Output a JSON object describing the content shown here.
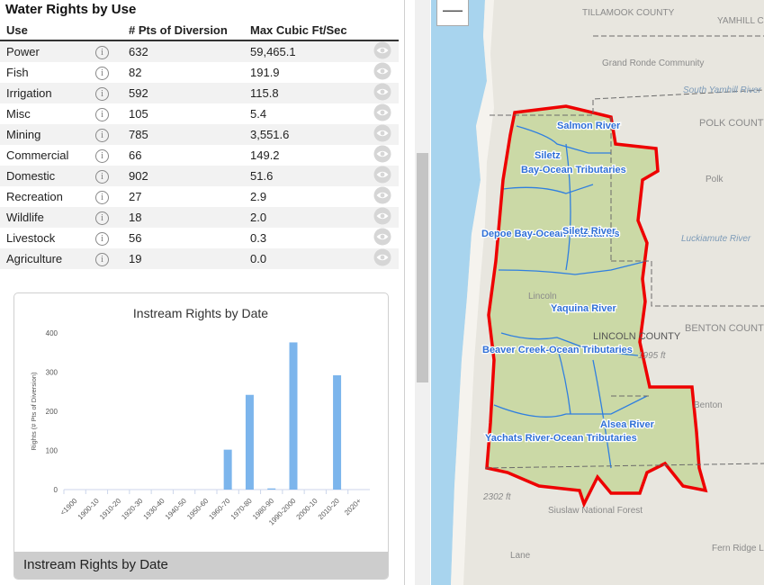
{
  "panel": {
    "title": "Water Rights by Use",
    "columns": [
      "Use",
      "# Pts of Diversion",
      "Max Cubic Ft/Sec"
    ],
    "rows": [
      {
        "use": "Power",
        "points": "632",
        "max_cfs": "59,465.1"
      },
      {
        "use": "Fish",
        "points": "82",
        "max_cfs": "191.9"
      },
      {
        "use": "Irrigation",
        "points": "592",
        "max_cfs": "115.8"
      },
      {
        "use": "Misc",
        "points": "105",
        "max_cfs": "5.4"
      },
      {
        "use": "Mining",
        "points": "785",
        "max_cfs": "3,551.6"
      },
      {
        "use": "Commercial",
        "points": "66",
        "max_cfs": "149.2"
      },
      {
        "use": "Domestic",
        "points": "902",
        "max_cfs": "51.6"
      },
      {
        "use": "Recreation",
        "points": "27",
        "max_cfs": "2.9"
      },
      {
        "use": "Wildlife",
        "points": "18",
        "max_cfs": "2.0"
      },
      {
        "use": "Livestock",
        "points": "56",
        "max_cfs": "0.3"
      },
      {
        "use": "Agriculture",
        "points": "19",
        "max_cfs": "0.0"
      }
    ],
    "info_icon": "info-circle-icon",
    "eye_icon": "eye-icon"
  },
  "chart_card": {
    "footer_label": "Instream Rights by Date"
  },
  "chart_data": {
    "type": "bar",
    "title": "Instream Rights by Date",
    "ylabel": "Rights (# Pts of Diversion)",
    "xlabel": "",
    "ylim": [
      0,
      400
    ],
    "yticks": [
      0,
      100,
      200,
      300,
      400
    ],
    "categories": [
      "<1900",
      "1900-10",
      "1910-20",
      "1920-30",
      "1930-40",
      "1940-50",
      "1950-60",
      "1960-70",
      "1970-80",
      "1980-90",
      "1990-2000",
      "2000-10",
      "2010-20",
      "2020+"
    ],
    "values": [
      0,
      0,
      0,
      0,
      0,
      0,
      0,
      102,
      242,
      3,
      376,
      0,
      292,
      0
    ],
    "bar_color": "#7cb5ec",
    "grid": false
  },
  "map": {
    "zoom_out_label": "—",
    "county_labels": [
      "TILLAMOOK COUNTY",
      "POLK COUNTY",
      "BENTON COUNTY",
      "LINCOLN COUNTY",
      "YAMHILL COUNTY"
    ],
    "place_labels": [
      "Grand Ronde Community",
      "Polk",
      "Lincoln",
      "Benton",
      "Siuslaw National Forest",
      "Fern Ridge Lake",
      "Lane",
      "South Yamhill River",
      "Luckiamute River"
    ],
    "basins": [
      "Salmon River",
      "Siletz",
      "Bay-Ocean Tributaries",
      "Depoe Bay-Ocean Tributaries",
      "Siletz River",
      "Yaquina River",
      "Beaver Creek-Ocean Tributaries",
      "Yachats River-Ocean Tributaries",
      "Alsea River"
    ],
    "elevations": [
      "2302 ft",
      "1995 ft"
    ],
    "colors": {
      "water": "#a8d4ee",
      "land": "#e8e6df",
      "watershed": "#cbd9a6",
      "outline": "#ee0000",
      "basin_lines": "#2f7fe0"
    }
  }
}
